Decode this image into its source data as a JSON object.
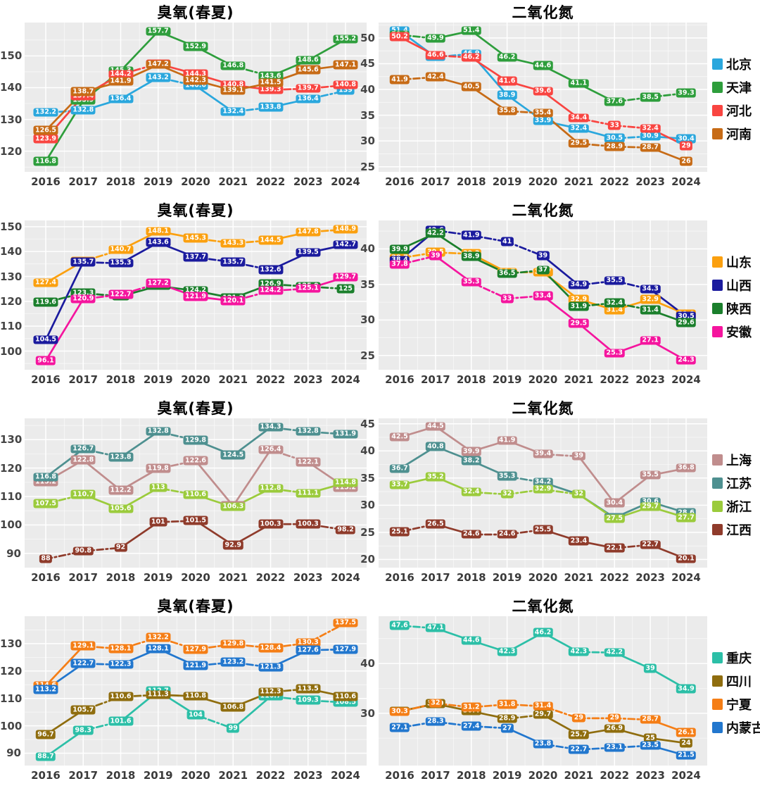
{
  "chart_data": {
    "type": "line",
    "x_labels": [
      "2016",
      "2017",
      "2018",
      "2019",
      "2020",
      "2021",
      "2022",
      "2023",
      "2024"
    ],
    "ozone_title": "臭氧(春夏)",
    "no2_title": "二氧化氮",
    "panel_bg": "#EBEBEB",
    "grid_color": "#FFFFFF",
    "rows": [
      {
        "ozone": {
          "title": "臭氧(春夏)",
          "yticks": [
            120,
            130,
            140,
            150
          ],
          "ylim": [
            113.5,
            160.5
          ],
          "series": [
            {
              "name": "北京",
              "color": "#2AA7DD",
              "dash": "dssdsdsd",
              "values": [
                132.2,
                132.8,
                136.4,
                143.2,
                140.6,
                132.4,
                133.8,
                136.4,
                139
              ]
            },
            {
              "name": "天津",
              "color": "#2E9E3C",
              "dash": "sssssdss",
              "values": [
                116.8,
                135.9,
                145.3,
                157.7,
                152.9,
                146.8,
                143.6,
                148.6,
                155.2
              ]
            },
            {
              "name": "河北",
              "color": "#F94541",
              "dash": "ssdsssdd",
              "values": [
                123.9,
                137.4,
                144.2,
                147.5,
                144.3,
                140.8,
                139.3,
                139.7,
                140.8
              ]
            },
            {
              "name": "河南",
              "color": "#C76B16",
              "dash": "ssssssss",
              "values": [
                126.5,
                138.7,
                141.9,
                147.2,
                142.3,
                139.1,
                141.5,
                145.6,
                147.1
              ]
            }
          ]
        },
        "no2": {
          "title": "二氧化氮",
          "yticks": [
            25,
            30,
            35,
            40,
            45,
            50
          ],
          "ylim": [
            24,
            53
          ],
          "series": [
            {
              "name": "北京",
              "color": "#2AA7DD",
              "dash": "sdssssds",
              "values": [
                51.4,
                46.3,
                46.9,
                38.9,
                33.9,
                32.4,
                30.5,
                30.9,
                30.4
              ]
            },
            {
              "name": "天津",
              "color": "#2E9E3C",
              "dash": "dsssssdd",
              "values": [
                50.6,
                49.9,
                51.4,
                46.2,
                44.6,
                41.1,
                37.6,
                38.5,
                39.3
              ]
            },
            {
              "name": "河北",
              "color": "#F94541",
              "dash": "sdsssdds",
              "values": [
                50.2,
                46.6,
                46.2,
                41.6,
                39.6,
                34.4,
                33,
                32.4,
                29
              ]
            },
            {
              "name": "河南",
              "color": "#C76B16",
              "dash": "dssdsdds",
              "values": [
                41.9,
                42.4,
                40.5,
                35.8,
                35.4,
                29.5,
                28.9,
                28.7,
                26
              ]
            }
          ]
        }
      },
      {
        "ozone": {
          "title": "臭氧(春夏)",
          "yticks": [
            100,
            110,
            120,
            130,
            140,
            150
          ],
          "ylim": [
            92.5,
            152.5
          ],
          "series": [
            {
              "name": "山东",
              "color": "#FBA00F",
              "dash": "sdssddsd",
              "values": [
                127.4,
                136.1,
                140.7,
                148.1,
                145.3,
                143.3,
                144.5,
                147.8,
                148.9
              ]
            },
            {
              "name": "山西",
              "color": "#1B1B9E",
              "dash": "sdssddss",
              "values": [
                104.5,
                135.7,
                135.3,
                143.6,
                137.7,
                135.7,
                132.6,
                139.5,
                142.7
              ]
            },
            {
              "name": "陕西",
              "color": "#1B7F2C",
              "dash": "ddssssdd",
              "values": [
                119.6,
                123.3,
                122,
                126.2,
                124.2,
                121.3,
                126.9,
                125.9,
                125
              ]
            },
            {
              "name": "安徽",
              "color": "#F5159E",
              "dash": "sddssdds",
              "values": [
                96.1,
                120.9,
                122.7,
                127.2,
                121.9,
                120.1,
                124.2,
                125.1,
                129.7
              ]
            }
          ]
        },
        "no2": {
          "title": "二氧化氮",
          "yticks": [
            25,
            30,
            35,
            40
          ],
          "ylim": [
            23,
            44
          ],
          "series": [
            {
              "name": "山东",
              "color": "#FBA00F",
              "dash": "ddsdssss",
              "values": [
                38.7,
                39.5,
                39.3,
                36.7,
                36.7,
                32.9,
                31.4,
                32.9,
                30.8
              ]
            },
            {
              "name": "山西",
              "color": "#1B1B9E",
              "dash": "sdddsdds",
              "values": [
                38.4,
                42.6,
                41.9,
                41,
                39,
                34.9,
                35.5,
                34.3,
                30.5
              ]
            },
            {
              "name": "陕西",
              "color": "#1B7F2C",
              "dash": "sssdsdds",
              "values": [
                39.9,
                42.2,
                38.9,
                36.5,
                37,
                31.9,
                32.4,
                31.4,
                29.6
              ]
            },
            {
              "name": "安徽",
              "color": "#F5159E",
              "dash": "dsddssss",
              "values": [
                37.8,
                39,
                35.3,
                33,
                33.4,
                29.5,
                25.3,
                27.1,
                24.3
              ]
            }
          ]
        }
      },
      {
        "ozone": {
          "title": "臭氧(春夏)",
          "yticks": [
            90,
            100,
            110,
            120,
            130
          ],
          "ylim": [
            85,
            137.5
          ],
          "series": [
            {
              "name": "上海",
              "color": "#C08D8D",
              "dash": "sssdssds",
              "values": [
                115.2,
                122.8,
                112.2,
                119.8,
                122.6,
                106.7,
                126.4,
                122.1,
                113.2
              ]
            },
            {
              "name": "江苏",
              "color": "#4E9090",
              "dash": "sdsdssdd",
              "values": [
                116.8,
                126.7,
                123.8,
                132.8,
                129.8,
                124.5,
                134.3,
                132.8,
                131.9
              ]
            },
            {
              "name": "浙江",
              "color": "#9BCB3C",
              "dash": "dssdssds",
              "values": [
                107.5,
                110.7,
                105.6,
                113,
                110.6,
                106.3,
                112.8,
                111.1,
                114.8
              ]
            },
            {
              "name": "江西",
              "color": "#8F3B2B",
              "dash": "ddsdssdd",
              "values": [
                88,
                90.8,
                92,
                101,
                101.5,
                92.9,
                100.3,
                100.3,
                98.2
              ]
            }
          ]
        },
        "no2": {
          "title": "二氧化氮",
          "yticks": [
            20,
            25,
            30,
            35,
            40,
            45
          ],
          "ylim": [
            18.5,
            46
          ],
          "series": [
            {
              "name": "上海",
              "color": "#C08D8D",
              "dash": "ssssdsss",
              "values": [
                42.5,
                44.5,
                39.9,
                41.9,
                39.4,
                39,
                30.4,
                35.5,
                36.8
              ]
            },
            {
              "name": "江苏",
              "color": "#4E9090",
              "dash": "sssdssss",
              "values": [
                36.7,
                40.8,
                38.2,
                35.3,
                34.2,
                32,
                27.7,
                30.6,
                28.6
              ]
            },
            {
              "name": "浙江",
              "color": "#9BCB3C",
              "dash": "ssdddsss",
              "values": [
                33.7,
                35.2,
                32.4,
                32,
                32.9,
                32,
                27.5,
                29.7,
                27.7
              ]
            },
            {
              "name": "江西",
              "color": "#8F3B2B",
              "dash": "dsddssds",
              "values": [
                25.1,
                26.5,
                24.6,
                24.6,
                25.5,
                23.4,
                22.1,
                22.7,
                20.1
              ]
            }
          ]
        }
      },
      {
        "ozone": {
          "title": "臭氧(春夏)",
          "yticks": [
            90,
            100,
            110,
            120,
            130
          ],
          "ylim": [
            85.5,
            140
          ],
          "series": [
            {
              "name": "重庆",
              "color": "#2CBFA7",
              "dash": "sdssdsdd",
              "values": [
                88.7,
                98.3,
                101.6,
                112.7,
                104,
                99,
                110.7,
                109.3,
                108.5
              ]
            },
            {
              "name": "四川",
              "color": "#8F6D0E",
              "dash": "sddsssds",
              "values": [
                96.7,
                105.7,
                110.6,
                111.3,
                110.8,
                106.8,
                112.3,
                113.5,
                110.6
              ]
            },
            {
              "name": "宁夏",
              "color": "#F57E16",
              "dash": "sddddddd",
              "values": [
                114.6,
                129.1,
                128.1,
                132.2,
                127.9,
                129.8,
                128.4,
                130.3,
                137.5
              ]
            },
            {
              "name": "内蒙古",
              "color": "#2277CE",
              "dash": "sdssddsd",
              "values": [
                113.2,
                122.7,
                122.3,
                128.1,
                121.9,
                123.2,
                121.3,
                127.6,
                127.9
              ]
            }
          ]
        },
        "no2": {
          "title": "二氧化氮",
          "yticks": [
            30,
            40
          ],
          "ylim": [
            19.5,
            49.5
          ],
          "series": [
            {
              "name": "重庆",
              "color": "#2CBFA7",
              "dash": "dssssdss",
              "values": [
                47.6,
                47.1,
                44.6,
                42.3,
                46.2,
                42.3,
                42.2,
                39,
                34.9
              ]
            },
            {
              "name": "四川",
              "color": "#8F6D0E",
              "dash": "sssdssss",
              "values": [
                30.4,
                31.9,
                30.4,
                28.9,
                29.7,
                25.7,
                26.9,
                25,
                24
              ]
            },
            {
              "name": "宁夏",
              "color": "#F57E16",
              "dash": "ddddddds",
              "values": [
                30.3,
                32,
                31.2,
                31.8,
                31.4,
                29,
                29,
                28.7,
                26.1
              ]
            },
            {
              "name": "内蒙古",
              "color": "#2277CE",
              "dash": "dddsddds",
              "values": [
                27.1,
                28.3,
                27.4,
                27,
                23.8,
                22.7,
                23.1,
                23.5,
                21.5
              ]
            }
          ]
        }
      }
    ]
  }
}
